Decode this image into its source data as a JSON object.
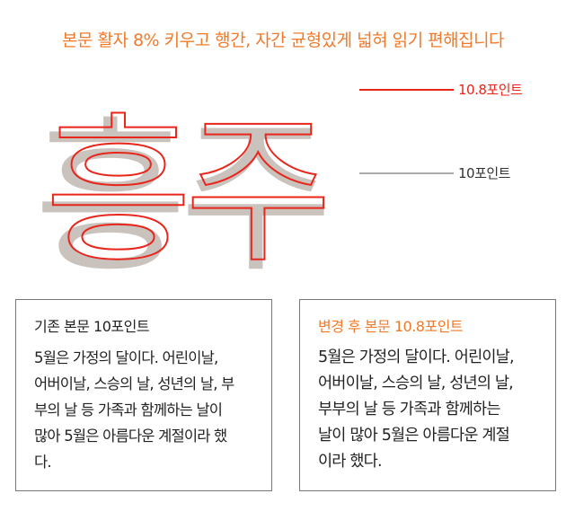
{
  "title": "본문 활자 8% 키우고 행간, 자간 균형있게 넓혀 읽기 편해집니다",
  "glyph_text": "흥주",
  "labels": {
    "new": "10.8포인트",
    "old": "10포인트"
  },
  "colors": {
    "accent": "#f07a2a",
    "outline": "#e8261c",
    "gray_glyph": "#c9c2bd"
  },
  "boxes": [
    {
      "heading": "기존 본문 10포인트",
      "lines": [
        "5월은 가정의 달이다. 어린이날,",
        "어버이날, 스승의 날, 성년의 날, 부",
        "부의 날 등 가족과 함께하는 날이",
        "많아 5월은 아름다운 계절이라 했",
        "다."
      ]
    },
    {
      "heading": "변경 후 본문 10.8포인트",
      "lines": [
        "5월은 가정의 달이다. 어린이날,",
        "어버이날, 스승의 날, 성년의 날,",
        "부부의 날 등 가족과 함께하는",
        "날이 많아 5월은 아름다운 계절",
        "이라 했다."
      ]
    }
  ]
}
